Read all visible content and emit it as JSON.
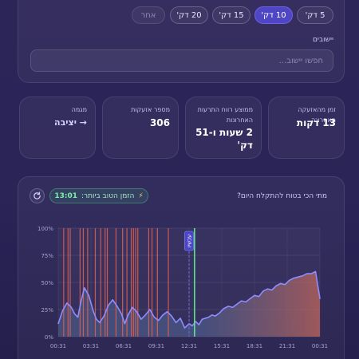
{
  "time_filters": [
    {
      "label": "5 דק'",
      "state": "normal"
    },
    {
      "label": "10 דק'",
      "state": "active"
    },
    {
      "label": "15 דק'",
      "state": "normal"
    },
    {
      "label": "20 דק'",
      "state": "normal"
    },
    {
      "label": "אחר",
      "state": "muted"
    }
  ],
  "settlement": {
    "label": "יישובים",
    "search_placeholder": "חפשו יישוב..."
  },
  "stats": [
    {
      "label": "זמן מהאזעקה האחרונה",
      "value": "13 דקות"
    },
    {
      "label": "ממוצע רווח התרעות האחרונות",
      "value": "2 שעות ו-51 דק'"
    },
    {
      "label": "מספר אזעקות",
      "value": "306"
    },
    {
      "label": "מגמה",
      "value": "→ יציבה"
    }
  ],
  "chart_section": {
    "question": "מתי הכי בטוח להתקלח היום?",
    "best_time_label": "הזמן הטוב ביותר:",
    "best_time_value": "13:01",
    "now_marker": "עכשיו",
    "icon": "lightning-icon",
    "refresh_icon": "refresh-icon"
  },
  "chart_data": {
    "type": "area",
    "title": "",
    "xlabel": "",
    "ylabel": "",
    "ylim": [
      0,
      100
    ],
    "y_ticks": [
      "0%",
      "25%",
      "50%",
      "75%",
      "100%"
    ],
    "x_ticks": [
      "00:31",
      "03:31",
      "06:31",
      "09:31",
      "12:31",
      "15:31",
      "18:31",
      "21:31",
      "00:31"
    ],
    "x_hours": [
      0,
      3,
      6,
      9,
      12,
      15,
      18,
      21,
      24
    ],
    "series": [
      {
        "hours": [
          0,
          0.4,
          0.8,
          1.2,
          1.5,
          1.8,
          2.1,
          2.4,
          2.8,
          3.2,
          3.5,
          3.8,
          4.2,
          4.6,
          5.0,
          5.4,
          5.8,
          6.1,
          6.4,
          6.8,
          7.2,
          7.6,
          8.0,
          8.4,
          8.8,
          9.2,
          9.6,
          10.0,
          10.4,
          10.8,
          11.2,
          11.6,
          12.0,
          12.3,
          12.6,
          12.9,
          13.2,
          13.5,
          13.8,
          14.1,
          14.4,
          14.8,
          15.2,
          15.6,
          16.0,
          16.4,
          16.8,
          17.2,
          17.6,
          18.0,
          18.4,
          18.8,
          19.2,
          19.6,
          20.0,
          20.4,
          20.8,
          21.2,
          21.6,
          22.0,
          22.4,
          22.8,
          23.2,
          23.6,
          24.0
        ],
        "values": [
          12,
          24,
          31,
          27,
          21,
          18,
          33,
          45,
          38,
          24,
          16,
          13,
          19,
          29,
          34,
          28,
          21,
          12,
          20,
          27,
          23,
          16,
          20,
          25,
          18,
          15,
          20,
          23,
          19,
          13,
          17,
          8,
          12,
          10,
          14,
          11,
          16,
          17,
          18,
          20,
          19,
          22,
          26,
          28,
          27,
          30,
          33,
          32,
          35,
          38,
          37,
          42,
          44,
          43,
          47,
          49,
          48,
          52,
          54,
          55,
          56,
          58,
          58,
          60,
          35
        ]
      }
    ],
    "alert_hours": [
      0.5,
      0.9,
      1.1,
      2.0,
      2.3,
      2.7,
      3.4,
      3.9,
      4.3,
      4.5,
      5.3,
      5.9,
      6.3,
      6.7,
      6.9,
      7.1,
      7.3,
      8.3,
      8.6,
      9.1,
      10.1
    ],
    "now_hour": 12.0,
    "best_hour": 12.5,
    "grid": true,
    "colors": {
      "line": "#8f8cff",
      "alert": "#e5604e",
      "best": "#5fe28e",
      "now": "#6e6af0",
      "fill_low": "#556c9b",
      "fill_high": "#d06b5a"
    }
  }
}
